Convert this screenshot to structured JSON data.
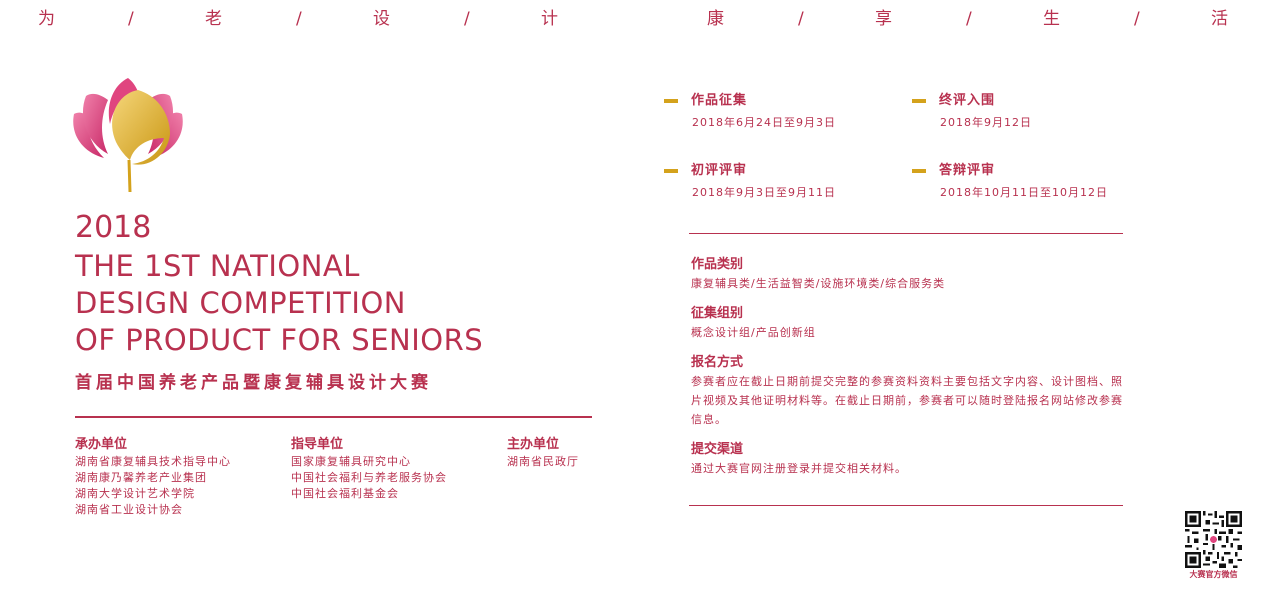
{
  "slogan": [
    "为",
    "/",
    "老",
    "/",
    "设",
    "/",
    "计",
    "康",
    "/",
    "享",
    "/",
    "生",
    "/",
    "活"
  ],
  "title": {
    "year": "2018",
    "en_lines": [
      "THE 1ST NATIONAL",
      "DESIGN COMPETITION",
      "OF PRODUCT FOR SENIORS"
    ],
    "cn": "首届中国养老产品暨康复辅具设计大赛"
  },
  "organizers": [
    {
      "heading": "承办单位",
      "items": [
        "湖南省康复辅具技术指导中心",
        "湖南康乃馨养老产业集团",
        "湖南大学设计艺术学院",
        "湖南省工业设计协会"
      ]
    },
    {
      "heading": "指导单位",
      "items": [
        "国家康复辅具研究中心",
        "中国社会福利与养老服务协会",
        "中国社会福利基金会"
      ]
    },
    {
      "heading": "主办单位",
      "items": [
        "湖南省民政厅"
      ]
    }
  ],
  "schedule": [
    {
      "heading": "作品征集",
      "date": "2018年6月24日至9月3日"
    },
    {
      "heading": "终评入围",
      "date": "2018年9月12日"
    },
    {
      "heading": "初评评审",
      "date": "2018年9月3日至9月11日"
    },
    {
      "heading": "答辩评审",
      "date": "2018年10月11日至10月12日"
    }
  ],
  "info": [
    {
      "heading": "作品类别",
      "text": "康复辅具类/生活益智类/设施环境类/综合服务类"
    },
    {
      "heading": "征集组别",
      "text": "概念设计组/产品创新组"
    },
    {
      "heading": "报名方式",
      "text": "参赛者应在截止日期前提交完整的参赛资料资料主要包括文字内容、设计图档、照片视频及其他证明材料等。在截止日期前，参赛者可以随时登陆报名网站修改参赛信息。"
    },
    {
      "heading": "提交渠道",
      "text": "通过大赛官网注册登录并提交相关材料。"
    }
  ],
  "qr": {
    "label": "大赛官方微信",
    "icon": "qr-code-icon"
  },
  "colors": {
    "primary": "#b8314f",
    "accent": "#d4a21c",
    "petal": "#e0457f"
  }
}
